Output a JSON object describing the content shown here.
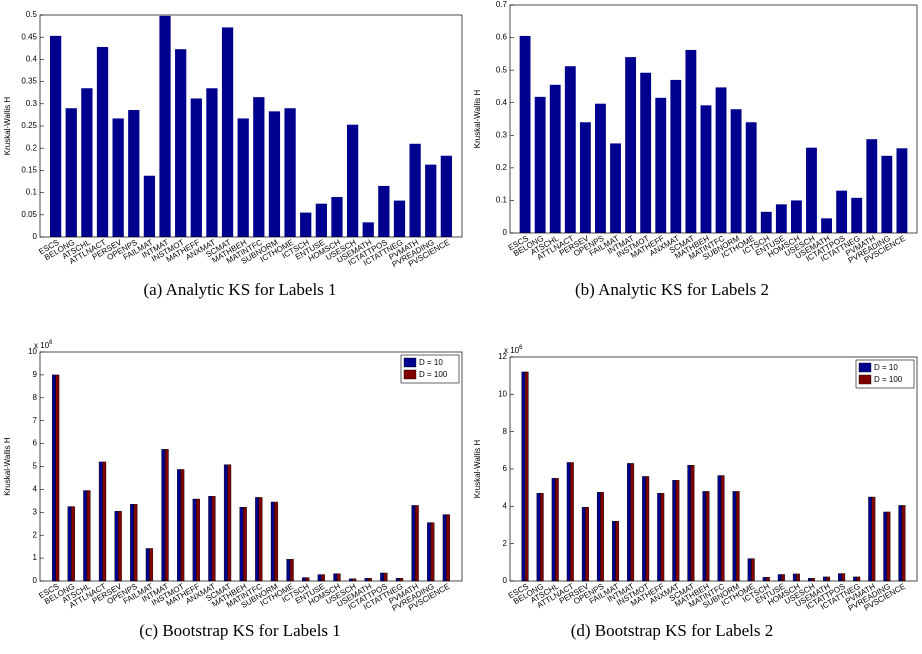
{
  "chart_data": [
    {
      "type": "bar",
      "caption": "(a) Analytic KS for Labels 1",
      "y_label": "Kruskal-Wallis H",
      "categories": [
        "ESCS",
        "BELONG",
        "ATSCHL",
        "ATTLNACT",
        "PERSEV",
        "OPENPS",
        "FAILMAT",
        "INTMAT",
        "INSTMOT",
        "MATHEFF",
        "ANXMAT",
        "SCMAT",
        "MATHBEH",
        "MATINTFC",
        "SUBNORM",
        "ICTHOME",
        "ICTSCH",
        "ENTUSE",
        "HOMSCH",
        "USESCH",
        "USEMATH",
        "ICTATTPOS",
        "ICTATTNEG",
        "PVMATH",
        "PVREADING",
        "PVSCIENCE"
      ],
      "series": [
        {
          "color": "#00008f",
          "values": [
            0.453,
            0.29,
            0.335,
            0.428,
            0.267,
            0.286,
            0.138,
            0.498,
            0.423,
            0.312,
            0.335,
            0.472,
            0.267,
            0.315,
            0.283,
            0.29,
            0.055,
            0.075,
            0.09,
            0.253,
            0.033,
            0.115,
            0.082,
            0.21,
            0.163,
            0.183
          ]
        }
      ],
      "ylim": [
        0,
        0.5
      ],
      "yticks": [
        0,
        0.05,
        0.1,
        0.15,
        0.2,
        0.25,
        0.3,
        0.35,
        0.4,
        0.45,
        0.5
      ]
    },
    {
      "type": "bar",
      "caption": "(b) Analytic KS for Labels 2",
      "y_label": "Kruskal-Wallis H",
      "categories": [
        "ESCS",
        "BELONG",
        "ATSCHL",
        "ATTLNACT",
        "PERSEV",
        "OPENPS",
        "FAILMAT",
        "INTMAT",
        "INSTMOT",
        "MATHEFF",
        "ANXMAT",
        "SCMAT",
        "MATHBEH",
        "MATINTFC",
        "SUBNORM",
        "ICTHOME",
        "ICTSCH",
        "ENTUSE",
        "HOMSCH",
        "USESCH",
        "USEMATH",
        "ICTATTPOS",
        "ICTATTNEG",
        "PVMATH",
        "PVREADING",
        "PVSCIENCE"
      ],
      "series": [
        {
          "color": "#00008f",
          "values": [
            0.605,
            0.418,
            0.455,
            0.512,
            0.34,
            0.397,
            0.275,
            0.54,
            0.492,
            0.415,
            0.47,
            0.562,
            0.392,
            0.447,
            0.38,
            0.34,
            0.065,
            0.088,
            0.1,
            0.262,
            0.045,
            0.13,
            0.108,
            0.288,
            0.237,
            0.26
          ]
        }
      ],
      "ylim": [
        0,
        0.7
      ],
      "yticks": [
        0,
        0.1,
        0.2,
        0.3,
        0.4,
        0.5,
        0.6,
        0.7
      ]
    },
    {
      "type": "grouped_bar",
      "caption": "(c) Bootstrap KS for Labels 1",
      "y_label": "Kruskal-Wallis H",
      "y_multiplier": "x 10",
      "y_multiplier_exp": "6",
      "legend": "upper right",
      "categories": [
        "ESCS",
        "BELONG",
        "ATSCHL",
        "ATTLNACT",
        "PERSEV",
        "OPENPS",
        "FAILMAT",
        "INTMAT",
        "INSTMOT",
        "MATHEFF",
        "ANXMAT",
        "SCMAT",
        "MATHBEH",
        "MATINTFC",
        "SUBNORM",
        "ICTHOME",
        "ICTSCH",
        "ENTUSE",
        "HOMSCH",
        "USESCH",
        "USEMATH",
        "ICTATTPOS",
        "ICTATTNEG",
        "PVMATH",
        "PVREADING",
        "PVSCIENCE"
      ],
      "series": [
        {
          "name": "D = 10",
          "color": "#00008f",
          "values": [
            9.0,
            3.25,
            3.95,
            5.2,
            3.05,
            3.35,
            1.42,
            5.75,
            4.87,
            3.58,
            3.7,
            5.08,
            3.22,
            3.65,
            3.45,
            0.95,
            0.15,
            0.28,
            0.32,
            0.1,
            0.12,
            0.35,
            0.12,
            3.3,
            2.55,
            2.9
          ]
        },
        {
          "name": "D = 100",
          "color": "#800000",
          "values": [
            9.0,
            3.25,
            3.95,
            5.2,
            3.05,
            3.35,
            1.42,
            5.75,
            4.87,
            3.58,
            3.7,
            5.08,
            3.22,
            3.65,
            3.45,
            0.95,
            0.15,
            0.28,
            0.32,
            0.1,
            0.12,
            0.35,
            0.12,
            3.3,
            2.55,
            2.9
          ]
        }
      ],
      "ylim": [
        0,
        10
      ],
      "yticks": [
        0,
        1,
        2,
        3,
        4,
        5,
        6,
        7,
        8,
        9,
        10
      ]
    },
    {
      "type": "grouped_bar",
      "caption": "(d) Bootstrap KS for Labels 2",
      "y_label": "Kruskal-Wallis H",
      "y_multiplier": "x 10",
      "y_multiplier_exp": "6",
      "legend": "upper right",
      "categories": [
        "ESCS",
        "BELONG",
        "ATSCHL",
        "ATTLNACT",
        "PERSEV",
        "OPENPS",
        "FAILMAT",
        "INTMAT",
        "INSTMOT",
        "MATHEFF",
        "ANXMAT",
        "SCMAT",
        "MATHBEH",
        "MATINTFC",
        "SUBNORM",
        "ICTHOME",
        "ICTSCH",
        "ENTUSE",
        "HOMSCH",
        "USESCH",
        "USEMATH",
        "ICTATTPOS",
        "ICTATTNEG",
        "PVMATH",
        "PVREADING",
        "PVSCIENCE"
      ],
      "series": [
        {
          "name": "D = 10",
          "color": "#00008f",
          "values": [
            11.2,
            4.7,
            5.5,
            6.35,
            3.95,
            4.75,
            3.2,
            6.3,
            5.6,
            4.7,
            5.4,
            6.2,
            4.8,
            5.65,
            4.8,
            1.2,
            0.2,
            0.35,
            0.38,
            0.15,
            0.22,
            0.4,
            0.22,
            4.5,
            3.7,
            4.05
          ]
        },
        {
          "name": "D = 100",
          "color": "#800000",
          "values": [
            11.2,
            4.7,
            5.5,
            6.35,
            3.95,
            4.75,
            3.2,
            6.3,
            5.6,
            4.7,
            5.4,
            6.2,
            4.8,
            5.65,
            4.8,
            1.2,
            0.2,
            0.35,
            0.38,
            0.15,
            0.22,
            0.4,
            0.22,
            4.5,
            3.7,
            4.05
          ]
        }
      ],
      "ylim": [
        0,
        12
      ],
      "yticks": [
        0,
        2,
        4,
        6,
        8,
        10,
        12
      ]
    }
  ]
}
